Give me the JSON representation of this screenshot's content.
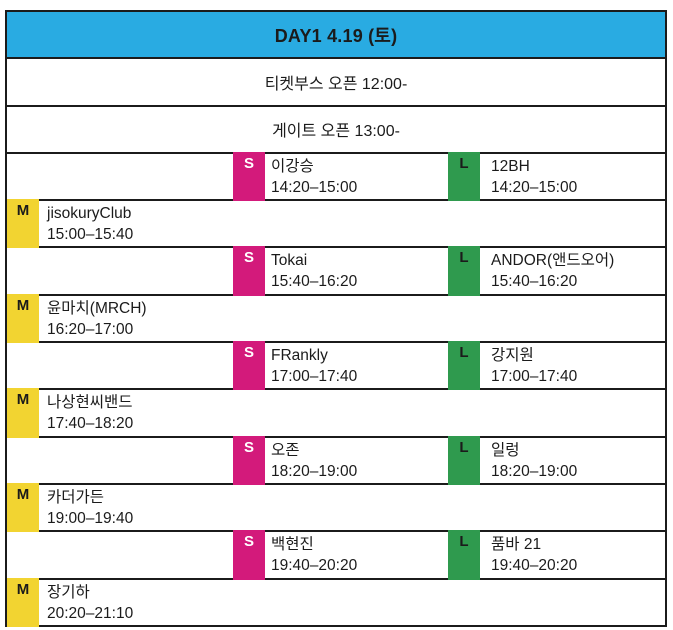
{
  "header": {
    "title": "DAY1 4.19 (토)",
    "bg": "#29ABE2",
    "border_color": "#1b1b1b"
  },
  "info_rows": [
    {
      "text": "티켓부스 오픈 12:00-"
    },
    {
      "text": "게이트 오픈 13:00-"
    }
  ],
  "stages": {
    "M": {
      "label": "M",
      "color": "#F2D431",
      "text_color": "#1b1b1b"
    },
    "S": {
      "label": "S",
      "color": "#D31A7B",
      "text_color": "#ffffff"
    },
    "L": {
      "label": "L",
      "color": "#2F9A4E",
      "text_color": "#1b1b1b"
    }
  },
  "rows": [
    {
      "slots": [
        {
          "stage": "S",
          "name": "이강승",
          "time": "14:20–15:00"
        },
        {
          "stage": "L",
          "name": "12BH",
          "time": "14:20–15:00"
        }
      ]
    },
    {
      "slots": [
        {
          "stage": "M",
          "name": "jisokuryClub",
          "time": "15:00–15:40"
        }
      ]
    },
    {
      "slots": [
        {
          "stage": "S",
          "name": "Tokai",
          "time": "15:40–16:20"
        },
        {
          "stage": "L",
          "name": "ANDOR(앤드오어)",
          "time": "15:40–16:20"
        }
      ]
    },
    {
      "slots": [
        {
          "stage": "M",
          "name": "윤마치(MRCH)",
          "time": "16:20–17:00"
        }
      ]
    },
    {
      "slots": [
        {
          "stage": "S",
          "name": "FRankly",
          "time": "17:00–17:40"
        },
        {
          "stage": "L",
          "name": "강지원",
          "time": "17:00–17:40"
        }
      ]
    },
    {
      "slots": [
        {
          "stage": "M",
          "name": "나상현씨밴드",
          "time": "17:40–18:20"
        }
      ]
    },
    {
      "slots": [
        {
          "stage": "S",
          "name": "오존",
          "time": "18:20–19:00"
        },
        {
          "stage": "L",
          "name": "일렁",
          "time": "18:20–19:00"
        }
      ]
    },
    {
      "slots": [
        {
          "stage": "M",
          "name": "카더가든",
          "time": "19:00–19:40"
        }
      ]
    },
    {
      "slots": [
        {
          "stage": "S",
          "name": "백현진",
          "time": "19:40–20:20"
        },
        {
          "stage": "L",
          "name": "품바 21",
          "time": "19:40–20:20"
        }
      ]
    },
    {
      "slots": [
        {
          "stage": "M",
          "name": "장기하",
          "time": "20:20–21:10"
        }
      ]
    }
  ]
}
